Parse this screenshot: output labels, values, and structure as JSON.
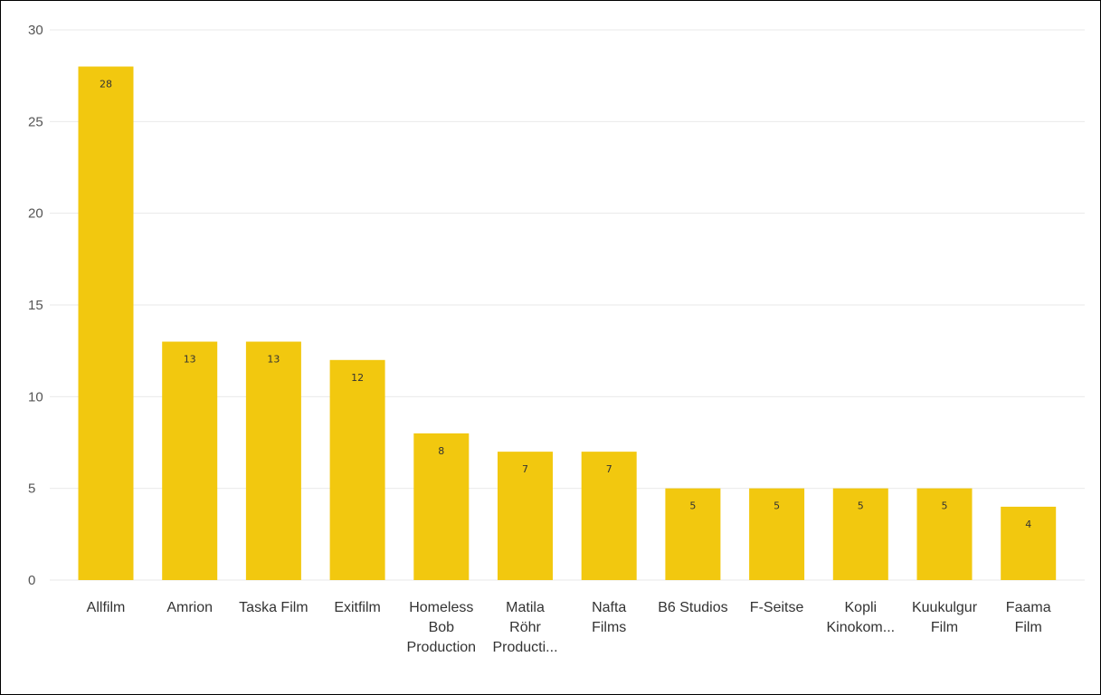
{
  "chart_data": {
    "type": "bar",
    "title": "",
    "xlabel": "",
    "ylabel": "",
    "categories": [
      [
        "Allfilm"
      ],
      [
        "Amrion"
      ],
      [
        "Taska Film"
      ],
      [
        "Exitfilm"
      ],
      [
        "Homeless",
        "Bob",
        "Production"
      ],
      [
        "Matila",
        "Röhr",
        "Producti..."
      ],
      [
        "Nafta",
        "Films"
      ],
      [
        "B6 Studios"
      ],
      [
        "F-Seitse"
      ],
      [
        "Kopli",
        "Kinokom..."
      ],
      [
        "Kuukulgur",
        "Film"
      ],
      [
        "Faama",
        "Film"
      ]
    ],
    "values": [
      28,
      13,
      13,
      12,
      8,
      7,
      7,
      5,
      5,
      5,
      5,
      4
    ],
    "ylim": [
      0,
      30
    ],
    "yticks": [
      0,
      5,
      10,
      15,
      20,
      25,
      30
    ],
    "grid": true,
    "data_labels": true,
    "bar_color": "#F2C80F"
  }
}
